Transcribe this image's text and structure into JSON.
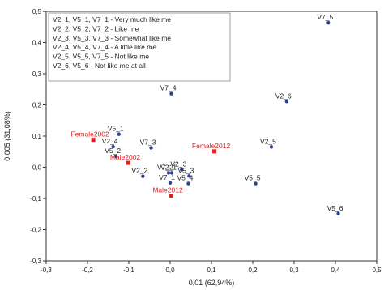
{
  "chart_data": {
    "type": "scatter",
    "xlabel": "0,01 (62,94%)",
    "ylabel": "0,005 (31,08%)",
    "xlim": [
      -0.3,
      0.5
    ],
    "ylim": [
      -0.3,
      0.5
    ],
    "xticks": [
      "-0,3",
      "-0,2",
      "-0,1",
      "0,0",
      "0,1",
      "0,2",
      "0,3",
      "0,4",
      "0,5"
    ],
    "yticks": [
      "0,5",
      "0,4",
      "0,3",
      "0,2",
      "0,1",
      "0,0",
      "-0,1",
      "-0,2",
      "-0,3"
    ],
    "grid": false,
    "legend_lines": [
      "V2_1, V5_1, V7_1 - Very much like me",
      "V2_2, V5_2, V7_2 - Like me",
      "V2_3, V5_3, V7_3 - Somewhat like me",
      "V2_4, V5_4, V7_4 - A little like me",
      "V2_5, V5_5, V7_5 - Not like me",
      "V2_6, V5_6 - Not like me at all"
    ],
    "series": [
      {
        "marker": "circle",
        "color": "#2e3f8f",
        "label_color": "#222222",
        "points": [
          {
            "label": "V7_5",
            "x": 0.383,
            "y": 0.463
          },
          {
            "label": "V2_6",
            "x": 0.282,
            "y": 0.211
          },
          {
            "label": "V7_4",
            "x": 0.003,
            "y": 0.236
          },
          {
            "label": "V5_1",
            "x": -0.124,
            "y": 0.106
          },
          {
            "label": "V2_4",
            "x": -0.138,
            "y": 0.066
          },
          {
            "label": "V7_3",
            "x": -0.046,
            "y": 0.062
          },
          {
            "label": "V5_2",
            "x": -0.131,
            "y": 0.035
          },
          {
            "label": "V2_5",
            "x": 0.245,
            "y": 0.065
          },
          {
            "label": "V2_2",
            "x": -0.066,
            "y": -0.029
          },
          {
            "label": "V7_2",
            "x": -0.004,
            "y": -0.018
          },
          {
            "label": "V2_1",
            "x": 0.004,
            "y": -0.018
          },
          {
            "label": "V2_3",
            "x": 0.028,
            "y": -0.008
          },
          {
            "label": "V5_3",
            "x": 0.046,
            "y": -0.028
          },
          {
            "label": "V5_4",
            "x": 0.044,
            "y": -0.052
          },
          {
            "label": "V7_1",
            "x": 0.0,
            "y": -0.05
          },
          {
            "label": "V5_5",
            "x": 0.207,
            "y": -0.052
          },
          {
            "label": "V5_6",
            "x": 0.407,
            "y": -0.149
          }
        ]
      },
      {
        "marker": "square",
        "color": "#e02020",
        "label_color": "#e02020",
        "points": [
          {
            "label": "Female2002",
            "x": -0.186,
            "y": 0.088
          },
          {
            "label": "Male2002",
            "x": -0.101,
            "y": 0.014
          },
          {
            "label": "Female2012",
            "x": 0.107,
            "y": 0.051
          },
          {
            "label": "Male2012",
            "x": 0.002,
            "y": -0.091
          }
        ]
      }
    ]
  }
}
